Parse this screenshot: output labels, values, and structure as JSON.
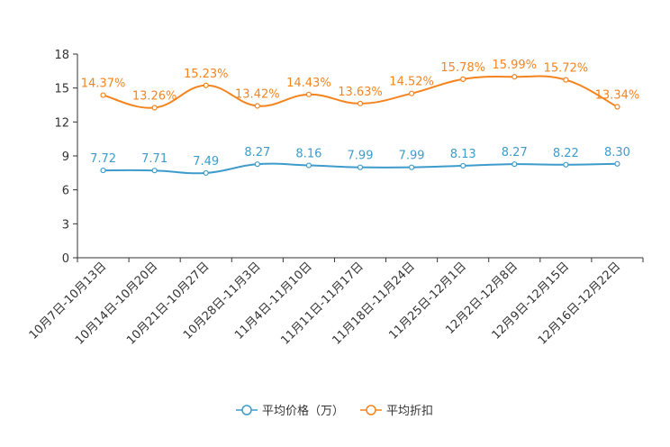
{
  "chart_data": {
    "type": "line",
    "categories": [
      "10月7日-10月13日",
      "10月14日-10月20日",
      "10月21日-10月27日",
      "10月28日-11月3日",
      "11月4日-11月10日",
      "11月11日-11月17日",
      "11月18日-11月24日",
      "11月25日-12月1日",
      "12月2日-12月8日",
      "12月9日-12月15日",
      "12月16日-12月22日"
    ],
    "yticks": [
      "0",
      "3",
      "6",
      "9",
      "12",
      "15",
      "18"
    ],
    "ylim": [
      0,
      18
    ],
    "series": [
      {
        "name": "平均价格（万）",
        "color": "#3d9ccb",
        "values": [
          7.72,
          7.71,
          7.49,
          8.27,
          8.16,
          7.99,
          7.99,
          8.13,
          8.27,
          8.22,
          8.3
        ],
        "labels": [
          "7.72",
          "7.71",
          "7.49",
          "8.27",
          "8.16",
          "7.99",
          "7.99",
          "8.13",
          "8.27",
          "8.22",
          "8.30"
        ]
      },
      {
        "name": "平均折扣",
        "color": "#f5841f",
        "values": [
          14.37,
          13.26,
          15.23,
          13.42,
          14.43,
          13.63,
          14.52,
          15.78,
          15.99,
          15.72,
          13.34
        ],
        "labels": [
          "14.37%",
          "13.26%",
          "15.23%",
          "13.42%",
          "14.43%",
          "13.63%",
          "14.52%",
          "15.78%",
          "15.99%",
          "15.72%",
          "13.34%"
        ]
      }
    ]
  }
}
